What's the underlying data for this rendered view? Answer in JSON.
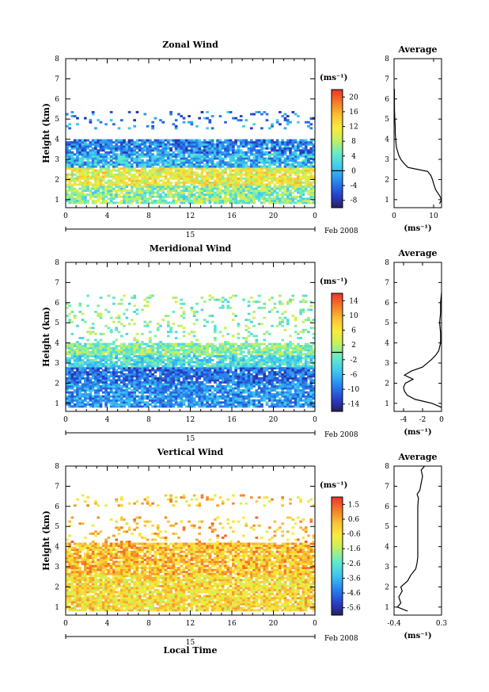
{
  "figure": {
    "x_label": "Local Time",
    "date_label": "Feb 2008",
    "date_tick": "15"
  },
  "chart_data": [
    {
      "type": "heatmap",
      "title": "Zonal Wind",
      "xlabel": "",
      "ylabel": "Height (km)",
      "xlim": [
        0,
        24
      ],
      "x_ticks": [
        "0",
        "4",
        "8",
        "12",
        "16",
        "20",
        "0"
      ],
      "ylim": [
        0.6,
        8
      ],
      "y_ticks": [
        "1",
        "2",
        "3",
        "4",
        "5",
        "6",
        "7",
        "8"
      ],
      "colorbar": {
        "unit": "(ms⁻¹)",
        "ticks": [
          "20",
          "16",
          "12",
          "8",
          "4",
          "0",
          "-4",
          "-8"
        ],
        "range": [
          -10,
          22
        ],
        "zero_line": 0
      },
      "features": [
        {
          "height_range": [
            0.8,
            1.7
          ],
          "mean_value": 6
        },
        {
          "height_range": [
            1.7,
            2.6
          ],
          "mean_value": 11
        },
        {
          "height_range": [
            2.6,
            3.3
          ],
          "mean_value": 0
        },
        {
          "height_range": [
            3.3,
            4.0
          ],
          "mean_value": -3
        },
        {
          "height_range": [
            4.5,
            5.4
          ],
          "mean_value": -3,
          "sparse": true
        }
      ],
      "average": {
        "title": "Average",
        "xlabel": "(ms⁻¹)",
        "xlim": [
          0,
          12
        ],
        "x_ticks": [
          "0",
          "10"
        ],
        "ylim": [
          0.6,
          8
        ],
        "y_ticks": [
          "1",
          "2",
          "3",
          "4",
          "5",
          "6",
          "7",
          "8"
        ],
        "profile_km": [
          0.8,
          1.0,
          1.2,
          1.5,
          1.8,
          2.0,
          2.2,
          2.4,
          2.5,
          2.6,
          2.8,
          3.0,
          3.2,
          3.4,
          3.6,
          3.8,
          4.0,
          4.3,
          4.6,
          5.0,
          5.5,
          6.0,
          6.5
        ],
        "profile_val": [
          11.5,
          12.0,
          11.5,
          10.5,
          10.0,
          9.7,
          9.3,
          8.5,
          6.0,
          3.5,
          2.5,
          1.7,
          1.2,
          0.9,
          0.6,
          0.5,
          0.4,
          0.3,
          0.3,
          0.2,
          0.1,
          0.1,
          0.1
        ]
      }
    },
    {
      "type": "heatmap",
      "title": "Meridional Wind",
      "xlabel": "",
      "ylabel": "Height (km)",
      "xlim": [
        0,
        24
      ],
      "x_ticks": [
        "0",
        "4",
        "8",
        "12",
        "16",
        "20",
        "0"
      ],
      "ylim": [
        0.6,
        8
      ],
      "y_ticks": [
        "1",
        "2",
        "3",
        "4",
        "5",
        "6",
        "7",
        "8"
      ],
      "colorbar": {
        "unit": "(ms⁻¹)",
        "ticks": [
          "14",
          "10",
          "6",
          "2",
          "-2",
          "-6",
          "-10",
          "-14"
        ],
        "range": [
          -16,
          16
        ],
        "zero_line": 0
      },
      "features": [
        {
          "height_range": [
            0.8,
            2.0
          ],
          "mean_value": -8
        },
        {
          "height_range": [
            2.0,
            2.8
          ],
          "mean_value": -10
        },
        {
          "height_range": [
            2.8,
            3.4
          ],
          "mean_value": -3
        },
        {
          "height_range": [
            3.4,
            4.0
          ],
          "mean_value": 0
        },
        {
          "height_range": [
            4.0,
            6.4
          ],
          "mean_value": 0,
          "sparse": true
        }
      ],
      "average": {
        "title": "Average",
        "xlabel": "(ms⁻¹)",
        "xlim": [
          -5,
          0
        ],
        "x_ticks": [
          "-4",
          "-2",
          "0"
        ],
        "ylim": [
          0.6,
          8
        ],
        "y_ticks": [
          "1",
          "2",
          "3",
          "4",
          "5",
          "6",
          "7",
          "8"
        ],
        "profile_km": [
          0.8,
          1.0,
          1.2,
          1.4,
          1.6,
          1.8,
          2.0,
          2.2,
          2.4,
          2.6,
          2.8,
          3.0,
          3.2,
          3.4,
          3.6,
          3.8,
          4.0,
          4.5,
          5.0,
          5.5,
          6.0,
          6.5
        ],
        "profile_val": [
          0.0,
          -1.0,
          -2.8,
          -3.6,
          -3.9,
          -4.0,
          -3.8,
          -3.0,
          -3.9,
          -3.2,
          -2.0,
          -1.5,
          -1.0,
          -0.6,
          -0.3,
          -0.2,
          -0.1,
          -0.1,
          -0.2,
          -0.1,
          -0.1,
          0.0
        ]
      }
    },
    {
      "type": "heatmap",
      "title": "Vertical Wind",
      "xlabel": "Local Time",
      "ylabel": "Height (km)",
      "xlim": [
        0,
        24
      ],
      "x_ticks": [
        "0",
        "4",
        "8",
        "12",
        "16",
        "20",
        "0"
      ],
      "ylim": [
        0.6,
        8
      ],
      "y_ticks": [
        "1",
        "2",
        "3",
        "4",
        "5",
        "6",
        "7",
        "8"
      ],
      "colorbar": {
        "unit": "(ms⁻¹)",
        "ticks": [
          "1.5",
          "0.6",
          "-0.6",
          "-1.6",
          "-2.6",
          "-3.6",
          "-4.6",
          "-5.6"
        ],
        "range": [
          -6.1,
          2.0
        ],
        "zero_line": null
      },
      "features": [
        {
          "height_range": [
            0.8,
            2.6
          ],
          "mean_value": -0.3
        },
        {
          "height_range": [
            2.6,
            4.2
          ],
          "mean_value": 0.2
        },
        {
          "height_range": [
            4.2,
            5.5
          ],
          "mean_value": 0.3,
          "sparse": true
        },
        {
          "height_range": [
            6.0,
            6.6
          ],
          "mean_value": 0.0,
          "sparse": true
        }
      ],
      "average": {
        "title": "Average",
        "xlabel": "(ms⁻¹)",
        "xlim": [
          -0.4,
          0.3
        ],
        "x_ticks": [
          "-0.4",
          "0.3"
        ],
        "ylim": [
          0.6,
          8
        ],
        "y_ticks": [
          "1",
          "2",
          "3",
          "4",
          "5",
          "6",
          "7",
          "8"
        ],
        "profile_km": [
          0.8,
          1.0,
          1.2,
          1.5,
          1.8,
          2.0,
          2.3,
          2.6,
          2.9,
          3.2,
          3.5,
          4.0,
          4.5,
          5.0,
          5.5,
          6.0,
          6.4,
          6.6,
          6.8,
          7.5,
          7.8,
          8.0
        ],
        "profile_val": [
          -0.2,
          -0.35,
          -0.3,
          -0.33,
          -0.28,
          -0.3,
          -0.2,
          -0.15,
          -0.08,
          -0.06,
          -0.05,
          -0.05,
          -0.05,
          -0.05,
          -0.05,
          -0.05,
          -0.04,
          -0.06,
          -0.02,
          0.02,
          0.0,
          0.05
        ]
      }
    }
  ]
}
